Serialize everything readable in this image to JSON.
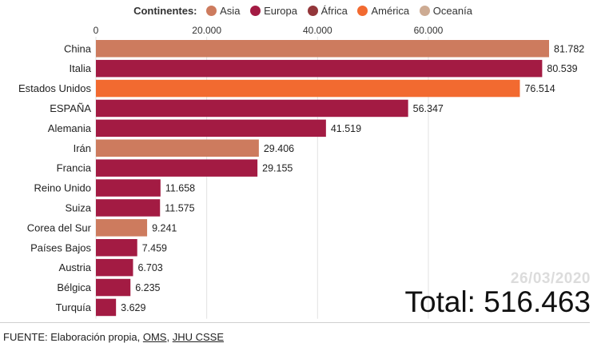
{
  "legend": {
    "title": "Continentes:",
    "items": [
      {
        "label": "Asia",
        "color": "#cd7b5e"
      },
      {
        "label": "Europa",
        "color": "#a31b43"
      },
      {
        "label": "África",
        "color": "#93363a"
      },
      {
        "label": "América",
        "color": "#f26a30"
      },
      {
        "label": "Oceanía",
        "color": "#cdab93"
      }
    ]
  },
  "chart_data": {
    "type": "bar",
    "orientation": "horizontal",
    "title": "",
    "xlabel": "",
    "ylabel": "",
    "xlim": [
      0,
      81782
    ],
    "x_ticks": [
      0,
      20000,
      40000,
      60000
    ],
    "x_tick_labels": [
      "0",
      "20.000",
      "40.000",
      "60.000"
    ],
    "grid": true,
    "categories": [
      "China",
      "Italia",
      "Estados Unidos",
      "ESPAÑA",
      "Alemania",
      "Irán",
      "Francia",
      "Reino Unido",
      "Suiza",
      "Corea del Sur",
      "Países Bajos",
      "Austria",
      "Bélgica",
      "Turquía"
    ],
    "values": [
      81782,
      80539,
      76514,
      56347,
      41519,
      29406,
      29155,
      11658,
      11575,
      9241,
      7459,
      6703,
      6235,
      3629
    ],
    "value_labels": [
      "81.782",
      "80.539",
      "76.514",
      "56.347",
      "41.519",
      "29.406",
      "29.155",
      "11.658",
      "11.575",
      "9.241",
      "7.459",
      "6.703",
      "6.235",
      "3.629"
    ],
    "continents": [
      "Asia",
      "Europa",
      "América",
      "Europa",
      "Europa",
      "Asia",
      "Europa",
      "Europa",
      "Europa",
      "Asia",
      "Europa",
      "Europa",
      "Europa",
      "Europa"
    ]
  },
  "date": "26/03/2020",
  "total": "Total: 516.463",
  "footer": {
    "prefix": "FUENTE: Elaboración propia, ",
    "link1": "OMS",
    "sep": ", ",
    "link2": "JHU CSSE"
  }
}
